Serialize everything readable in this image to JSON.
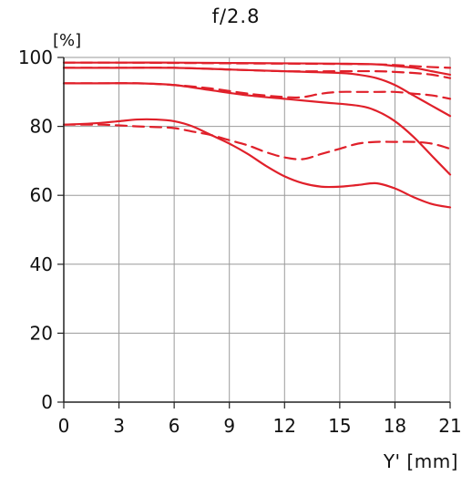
{
  "chart_data": {
    "type": "line",
    "title": "f/2.8",
    "ylabel": "[%]",
    "xlabel": "Y' [mm]",
    "xlim": [
      0,
      21
    ],
    "ylim": [
      0,
      100
    ],
    "xticks": [
      "0",
      "3",
      "6",
      "9",
      "12",
      "15",
      "18",
      "21"
    ],
    "yticks": [
      "0",
      "20",
      "40",
      "60",
      "80",
      "100"
    ],
    "grid": true,
    "series_color": "#e0202a",
    "series": [
      {
        "style": "solid",
        "x": [
          0,
          3,
          6,
          9,
          12,
          15,
          17,
          18,
          19,
          20,
          21
        ],
        "y": [
          98.5,
          98.5,
          98.5,
          98.4,
          98.3,
          98.2,
          98,
          97.5,
          97,
          96,
          95
        ]
      },
      {
        "style": "dashed",
        "x": [
          0,
          3,
          6,
          9,
          12,
          15,
          17,
          18,
          19,
          20,
          21
        ],
        "y": [
          98.5,
          98.5,
          98.4,
          98.3,
          98.2,
          98.1,
          98,
          97.8,
          97.5,
          97.2,
          97
        ]
      },
      {
        "style": "solid",
        "x": [
          0,
          3,
          6,
          9,
          12,
          15,
          16,
          17,
          18,
          19,
          20,
          21
        ],
        "y": [
          97,
          97,
          97,
          96.5,
          96,
          95.5,
          95,
          94,
          92,
          89,
          86,
          83
        ]
      },
      {
        "style": "dashed",
        "x": [
          0,
          3,
          6,
          9,
          12,
          15,
          17,
          18,
          19,
          20,
          21
        ],
        "y": [
          97,
          97,
          97,
          96.5,
          96,
          96,
          96,
          95.8,
          95.5,
          95,
          94
        ]
      },
      {
        "style": "solid",
        "x": [
          0,
          2,
          4,
          6,
          8,
          10,
          12,
          14,
          16,
          17,
          18,
          19,
          20,
          21
        ],
        "y": [
          92.5,
          92.5,
          92.5,
          92,
          90.5,
          89,
          88,
          87,
          86,
          84.5,
          81.5,
          77,
          71.5,
          66
        ]
      },
      {
        "style": "dashed",
        "x": [
          0,
          2,
          4,
          6,
          8,
          10,
          12,
          13,
          14,
          15,
          16,
          17,
          18,
          19,
          20,
          21
        ],
        "y": [
          92.5,
          92.5,
          92.5,
          92,
          91,
          89.5,
          88.5,
          88.5,
          89.5,
          90,
          90,
          90,
          90,
          89.5,
          89,
          88
        ]
      },
      {
        "style": "solid",
        "x": [
          0,
          1,
          2,
          3,
          4,
          5,
          6,
          7,
          8,
          9,
          10,
          11,
          12,
          13,
          14,
          15,
          16,
          17,
          18,
          19,
          20,
          21
        ],
        "y": [
          80.5,
          80.7,
          81,
          81.5,
          82,
          82,
          81.5,
          80,
          77.5,
          75,
          72,
          68.5,
          65.5,
          63.5,
          62.5,
          62.5,
          63,
          63.5,
          62,
          59.5,
          57.5,
          56.5
        ]
      },
      {
        "style": "dashed",
        "x": [
          0,
          1,
          2,
          3,
          4,
          5,
          6,
          7,
          8,
          9,
          10,
          11,
          12,
          13,
          14,
          15,
          16,
          17,
          18,
          19,
          20,
          21
        ],
        "y": [
          80.5,
          80.5,
          80.5,
          80.3,
          80,
          79.8,
          79.5,
          78.5,
          77.5,
          76,
          74.5,
          72.5,
          71,
          70.5,
          72,
          73.5,
          75,
          75.5,
          75.5,
          75.5,
          75,
          73.5
        ]
      }
    ]
  }
}
